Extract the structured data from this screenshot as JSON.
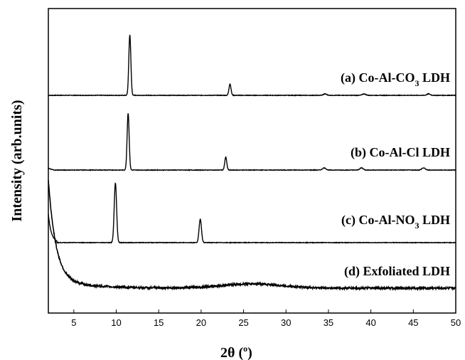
{
  "chart_data": {
    "type": "line",
    "xlabel": "2θ (°)",
    "xlabel_main": "2θ (",
    "xlabel_degree": "o",
    "xlabel_close": ")",
    "ylabel": "Intensity (arb.units)",
    "xlim": [
      2,
      50
    ],
    "x_ticks": [
      5,
      10,
      15,
      20,
      25,
      30,
      35,
      40,
      45,
      50
    ],
    "y_ticks_shown": false,
    "series": [
      {
        "name": "(a) Co-Al-CO3 LDH",
        "label_parts": {
          "pre": "(a) Co-Al-CO",
          "sub": "3",
          "post": " LDH"
        },
        "baseline": 0.83,
        "peaks": [
          {
            "x": 11.6,
            "h": 0.85,
            "w": 0.12
          },
          {
            "x": 23.4,
            "h": 0.16,
            "w": 0.12
          },
          {
            "x": 34.6,
            "h": 0.02,
            "w": 0.2
          },
          {
            "x": 39.2,
            "h": 0.02,
            "w": 0.2
          },
          {
            "x": 46.8,
            "h": 0.02,
            "w": 0.2
          }
        ]
      },
      {
        "name": "(b) Co-Al-Cl LDH",
        "label_parts": {
          "pre": "(b) Co-Al-Cl LDH",
          "sub": "",
          "post": ""
        },
        "baseline": 0.58,
        "peaks": [
          {
            "x": 11.4,
            "h": 0.8,
            "w": 0.12
          },
          {
            "x": 22.9,
            "h": 0.18,
            "w": 0.12
          },
          {
            "x": 34.5,
            "h": 0.03,
            "w": 0.2
          },
          {
            "x": 38.9,
            "h": 0.03,
            "w": 0.2
          },
          {
            "x": 46.2,
            "h": 0.03,
            "w": 0.2
          }
        ]
      },
      {
        "name": "(c) Co-Al-NO3 LDH",
        "label_parts": {
          "pre": "(c) Co-Al-NO",
          "sub": "3",
          "post": " LDH"
        },
        "baseline": 0.34,
        "peaks": [
          {
            "x": 9.9,
            "h": 0.84,
            "w": 0.14
          },
          {
            "x": 19.9,
            "h": 0.33,
            "w": 0.14
          }
        ]
      },
      {
        "name": "(d) Exfoliated LDH",
        "label_parts": {
          "pre": "(d) Exfoliated LDH",
          "sub": "",
          "post": ""
        },
        "baseline": 0.0,
        "noisy": true,
        "peaks": []
      }
    ],
    "grid": false,
    "legend": "labels placed above each curve on the right"
  }
}
